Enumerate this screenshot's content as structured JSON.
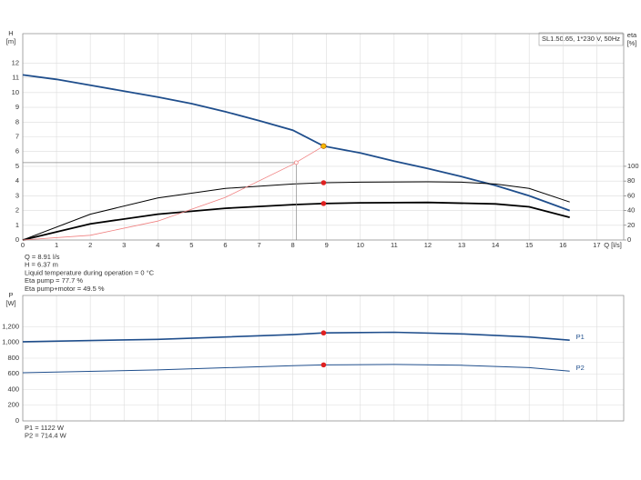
{
  "chart_data": [
    {
      "type": "line",
      "title": "SL1.50.65, 1*230 V, 50Hz",
      "ylabel": "H",
      "yunit": "[m]",
      "y2label": "eta",
      "y2unit": "[%]",
      "xlabel": "Q [l/s]",
      "xlim": [
        0,
        17.8
      ],
      "xticks": [
        0,
        1,
        2,
        3,
        4,
        5,
        6,
        7,
        8,
        9,
        10,
        11,
        12,
        13,
        14,
        15,
        16,
        17
      ],
      "ylim": [
        0,
        14
      ],
      "yticks": [
        0,
        1,
        2,
        3,
        4,
        5,
        6,
        7,
        8,
        9,
        10,
        11,
        12
      ],
      "y2lim": [
        0,
        280
      ],
      "y2ticks": [
        0,
        20,
        40,
        60,
        80,
        100
      ],
      "grid": true,
      "series": [
        {
          "color": "#1f4e8c",
          "width": 1.8,
          "x": [
            0,
            1,
            2,
            3,
            4,
            5,
            6,
            7,
            8,
            8.91,
            10,
            11,
            12,
            13,
            14,
            15,
            16.2
          ],
          "values": [
            11.2,
            10.9,
            10.5,
            10.1,
            9.7,
            9.25,
            8.7,
            8.1,
            7.45,
            6.37,
            5.9,
            5.35,
            4.85,
            4.3,
            3.7,
            3.0,
            2.0
          ]
        },
        {
          "color": "#000000",
          "width": 1,
          "axis": "y2",
          "x": [
            0,
            2,
            4,
            6,
            8,
            8.91,
            10,
            12,
            13,
            14,
            15,
            16.2
          ],
          "values": [
            0,
            35,
            57,
            70,
            76,
            77.7,
            78.5,
            79,
            78.5,
            76,
            70,
            51.6
          ]
        },
        {
          "color": "#000000",
          "width": 1.8,
          "axis": "y2",
          "x": [
            0,
            2,
            4,
            6,
            8,
            8.91,
            10,
            12,
            14,
            15,
            16.2
          ],
          "values": [
            0,
            22,
            35,
            43,
            48,
            49.5,
            50.5,
            51,
            49,
            45,
            30.7
          ]
        },
        {
          "color": "#f08080",
          "width": 0.8,
          "x": [
            0,
            2,
            4,
            6,
            8,
            8.91
          ],
          "values": [
            0,
            0.32,
            1.28,
            2.89,
            5.13,
            6.37
          ]
        },
        {
          "color": "#f08080",
          "marker": "crosshair",
          "x": [
            8.1
          ],
          "values": [
            5.25
          ]
        },
        {
          "color": "#f5b800",
          "marker": "dot",
          "x": [
            8.91
          ],
          "values": [
            6.37
          ]
        },
        {
          "color": "#e02020",
          "marker": "dot",
          "axis": "y2",
          "x": [
            8.91
          ],
          "values": [
            77.7
          ]
        },
        {
          "color": "#e02020",
          "marker": "dot",
          "axis": "y2",
          "x": [
            8.91
          ],
          "values": [
            49.5
          ]
        }
      ],
      "notes": [
        "Q = 8.91 l/s",
        "H = 6.37 m",
        "Liquid temperature during operation = 0 °C",
        "Eta pump = 77.7 %",
        "Eta pump+motor = 49.5 %"
      ]
    },
    {
      "type": "line",
      "ylabel": "P",
      "yunit": "[W]",
      "xlim": [
        0,
        17.8
      ],
      "xticks": [
        0,
        1,
        2,
        3,
        4,
        5,
        6,
        7,
        8,
        9,
        10,
        11,
        12,
        13,
        14,
        15,
        16,
        17
      ],
      "ylim": [
        0,
        1600
      ],
      "yticks": [
        0,
        200,
        400,
        600,
        800,
        {
          "value": 1000,
          "label": "1,000"
        },
        {
          "value": 1200,
          "label": "1,200"
        }
      ],
      "grid": true,
      "series": [
        {
          "name": "P1",
          "color": "#1f4e8c",
          "width": 1.6,
          "x": [
            0,
            4,
            8,
            8.91,
            11,
            13,
            15,
            16.2
          ],
          "values": [
            1010,
            1040,
            1100,
            1122,
            1130,
            1110,
            1070,
            1030
          ]
        },
        {
          "name": "P2",
          "color": "#1f4e8c",
          "width": 1,
          "x": [
            0,
            4,
            8,
            8.91,
            11,
            13,
            15,
            16.2
          ],
          "values": [
            615,
            650,
            705,
            714.4,
            720,
            710,
            680,
            635
          ]
        },
        {
          "color": "#e02020",
          "marker": "dot",
          "x": [
            8.91
          ],
          "values": [
            1122
          ]
        },
        {
          "color": "#e02020",
          "marker": "dot",
          "x": [
            8.91
          ],
          "values": [
            714.4
          ]
        }
      ],
      "notes": [
        "P1 = 1122 W",
        "P2 = 714.4 W"
      ]
    }
  ]
}
